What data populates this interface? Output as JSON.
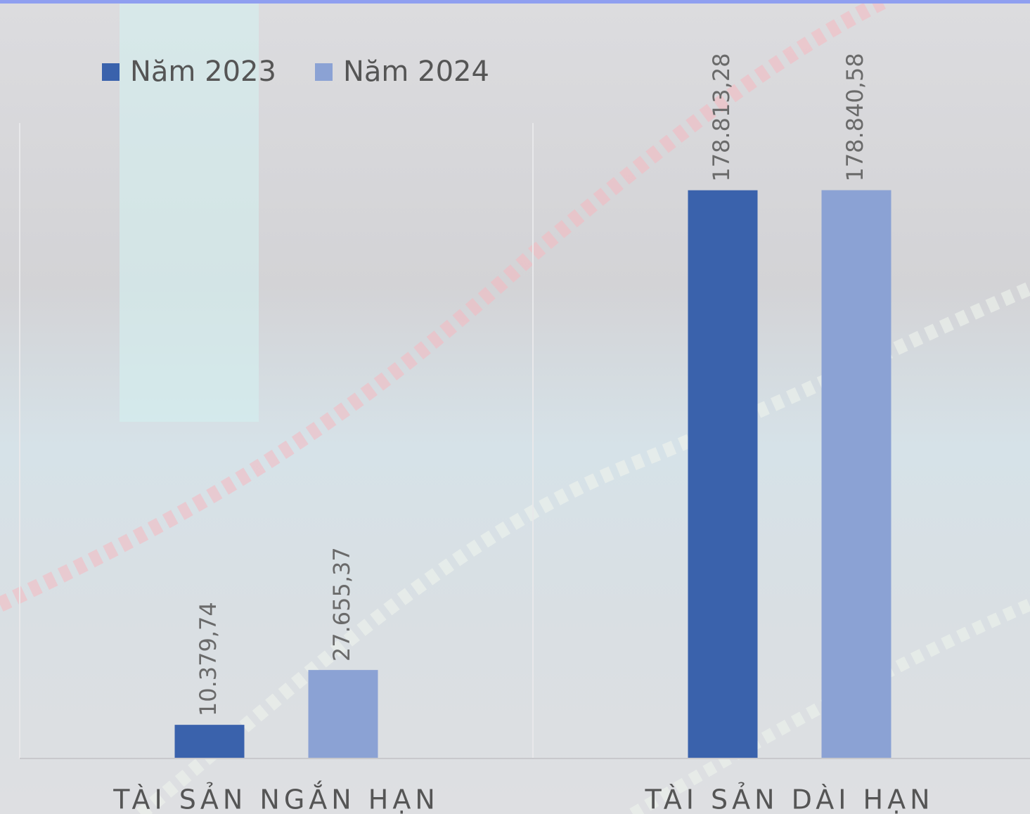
{
  "chart_data": {
    "type": "bar",
    "categories": [
      "TÀI SẢN NGẮN HẠN",
      "TÀI SẢN DÀI HẠN"
    ],
    "series": [
      {
        "name": "Năm 2023",
        "color": "#3a62ac",
        "values": [
          10379.74,
          178813.28
        ],
        "value_labels": [
          "10.379,74",
          "178.813,28"
        ]
      },
      {
        "name": "Năm 2024",
        "color": "#8ba2d4",
        "values": [
          27655.37,
          178840.58
        ],
        "value_labels": [
          "27.655,37",
          "178.840,58"
        ]
      }
    ],
    "ylim": [
      0,
      200000
    ],
    "legend": "top-left"
  }
}
